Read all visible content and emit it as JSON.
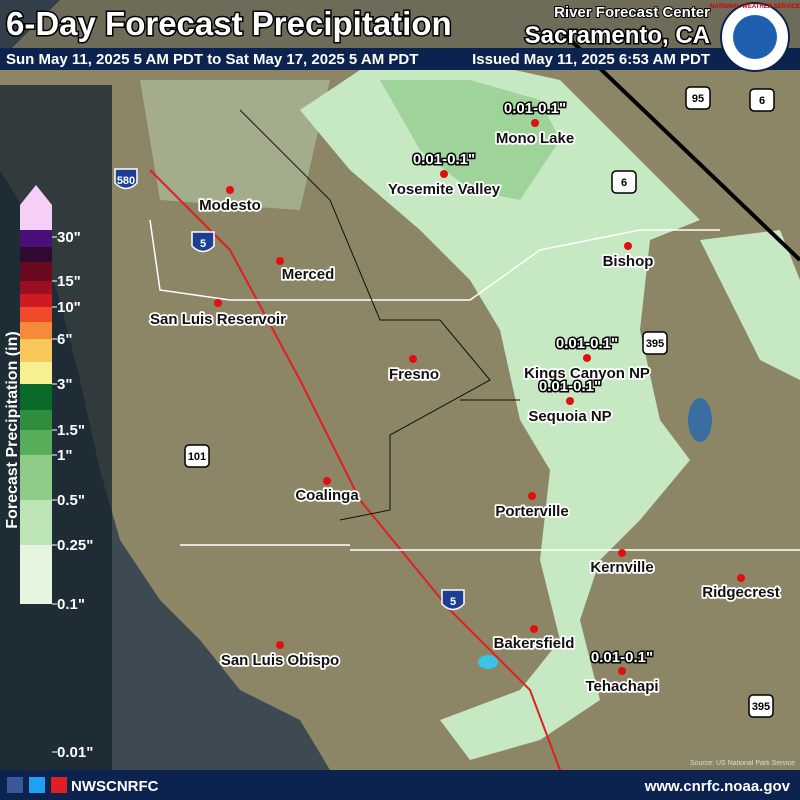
{
  "header": {
    "title": "6-Day Forecast Precipitation",
    "period": "Sun May 11, 2025 5 AM PDT to Sat May 17, 2025 5 AM PDT",
    "issued": "Issued May 11, 2025 6:53 AM PDT",
    "center": "River Forecast Center",
    "office": "Sacramento, CA",
    "logo": "NATIONAL WEATHER SERVICE"
  },
  "legend": {
    "title": "Forecast Precipitation (in)",
    "labels": [
      "30\"",
      "15\"",
      "10\"",
      "6\"",
      "3\"",
      "1.5\"",
      "1\"",
      "0.5\"",
      "0.25\"",
      "0.1\"",
      "0.01\""
    ],
    "colors": [
      "#f6cff6",
      "#4b0f78",
      "#300a30",
      "#6a0a20",
      "#9a1020",
      "#d01a22",
      "#f04a2a",
      "#f48a3a",
      "#f8c85a",
      "#f6f090",
      "#0a6a2a",
      "#2f8e3e",
      "#56ad5a",
      "#8fcc8a",
      "#bde5b8",
      "#e4f4df"
    ]
  },
  "cities": [
    "Modesto",
    "Merced",
    "San Luis Reservoir",
    "Fresno",
    "Coalinga",
    "Porterville",
    "Bakersfield",
    "San Luis Obispo",
    "Yosemite Valley",
    "Mono Lake",
    "Bishop",
    "Kings Canyon NP",
    "Sequoia NP",
    "Kernville",
    "Ridgecrest",
    "Tehachapi"
  ],
  "amounts": [
    "0.01-0.1\"",
    "0.01-0.1\"",
    "0.01-0.1\"",
    "0.01-0.1\"",
    "0.01-0.1\""
  ],
  "highways": [
    "580",
    "5",
    "5",
    "101",
    "395",
    "395",
    "6",
    "6",
    "95"
  ],
  "footer": {
    "social": "NWSCNRFC",
    "url": "www.cnrfc.noaa.gov",
    "source": "Source: US National Park Service"
  }
}
